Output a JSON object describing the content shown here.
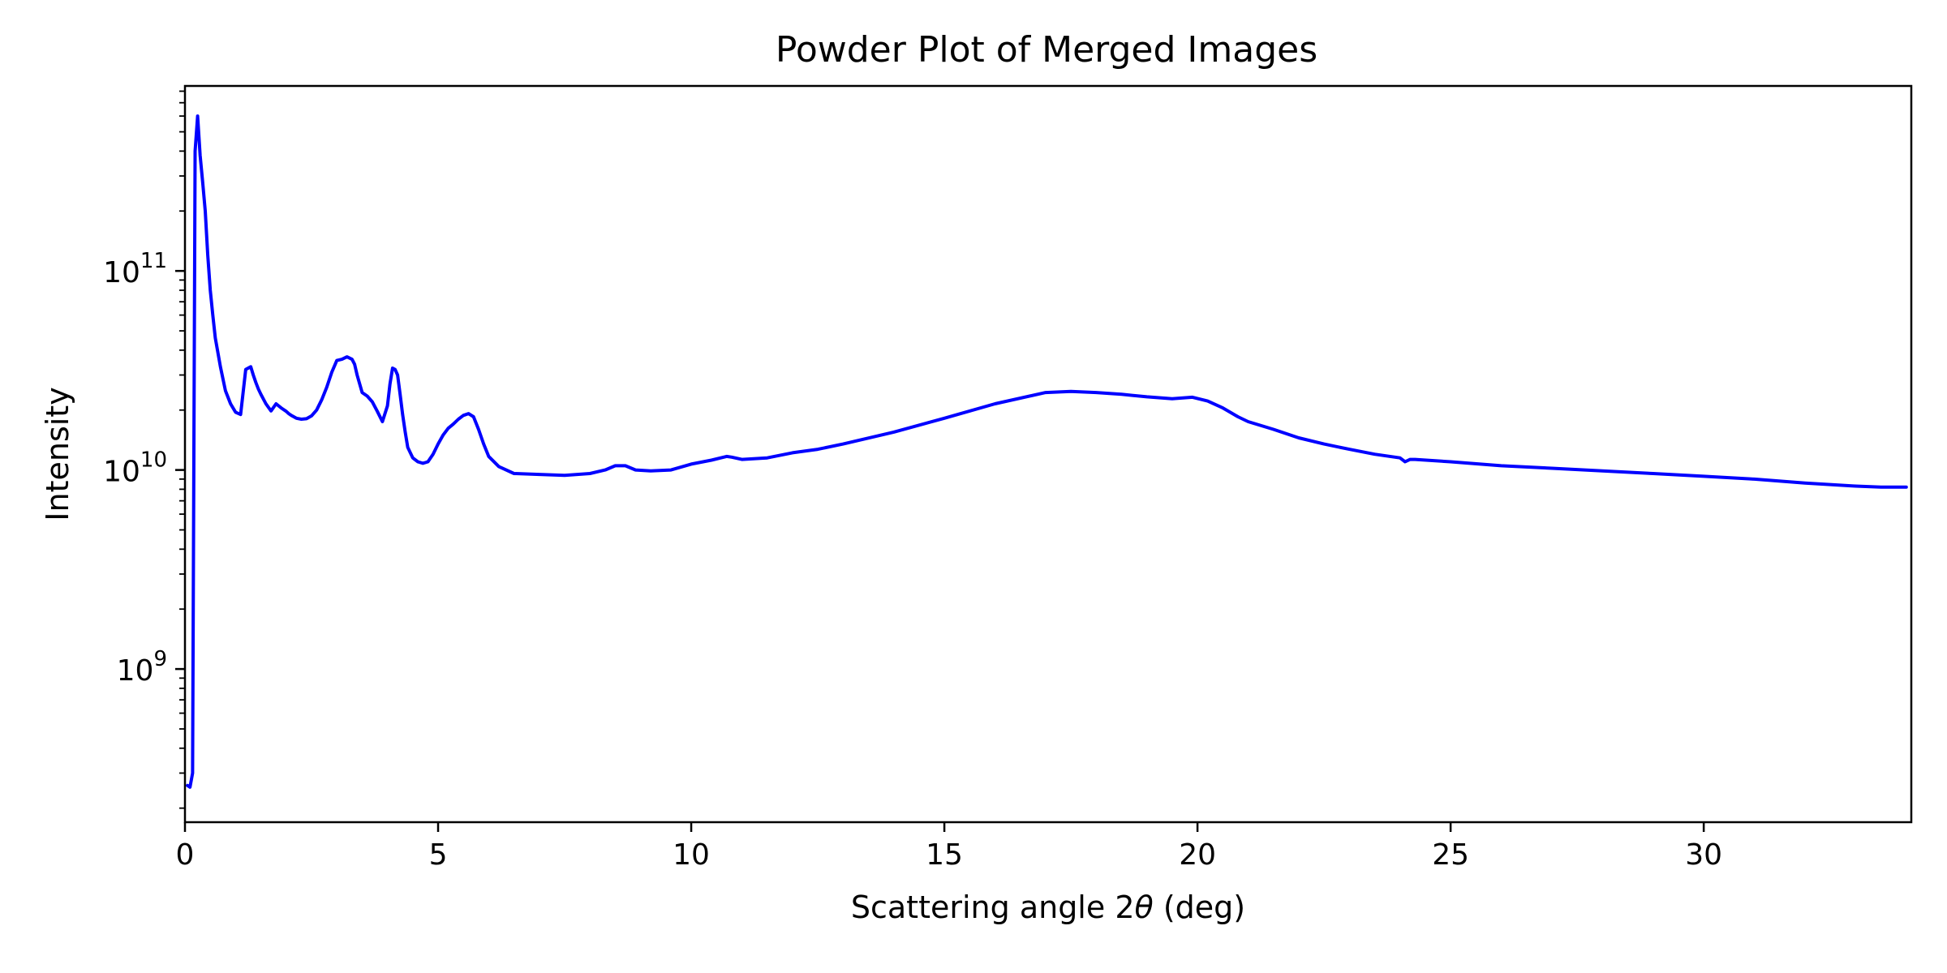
{
  "chart_data": {
    "type": "line",
    "title": "Powder Plot of Merged Images",
    "xlabel_prefix": "Scattering angle 2",
    "xlabel_theta": "θ",
    "xlabel_suffix": " (deg)",
    "ylabel": "Intensity",
    "xlim": [
      0,
      34.1
    ],
    "ylim": [
      170000000.0,
      850000000000.0
    ],
    "yscale": "log",
    "grid": false,
    "legend": "none",
    "line_color": "#0000ff",
    "x_ticks": [
      {
        "value": 0,
        "label": "0"
      },
      {
        "value": 5,
        "label": "5"
      },
      {
        "value": 10,
        "label": "10"
      },
      {
        "value": 15,
        "label": "15"
      },
      {
        "value": 20,
        "label": "20"
      },
      {
        "value": 25,
        "label": "25"
      },
      {
        "value": 30,
        "label": "30"
      }
    ],
    "y_ticks": [
      {
        "value": 1000000000.0,
        "base": "10",
        "exponent": "9"
      },
      {
        "value": 10000000000.0,
        "base": "10",
        "exponent": "10"
      },
      {
        "value": 100000000000.0,
        "base": "10",
        "exponent": "11"
      }
    ],
    "series": [
      {
        "x": [
          0.05,
          0.1,
          0.15,
          0.18,
          0.2,
          0.25,
          0.3,
          0.35,
          0.4,
          0.45,
          0.5,
          0.55,
          0.6,
          0.7,
          0.8,
          0.9,
          1.0,
          1.1,
          1.2,
          1.3,
          1.35,
          1.4,
          1.45,
          1.5,
          1.6,
          1.7,
          1.8,
          1.9,
          2.0,
          2.05,
          2.1,
          2.2,
          2.3,
          2.4,
          2.5,
          2.6,
          2.7,
          2.8,
          2.9,
          3.0,
          3.1,
          3.2,
          3.3,
          3.35,
          3.4,
          3.5,
          3.6,
          3.7,
          3.8,
          3.9,
          4.0,
          4.05,
          4.1,
          4.15,
          4.2,
          4.25,
          4.3,
          4.35,
          4.4,
          4.5,
          4.6,
          4.7,
          4.8,
          4.9,
          5.0,
          5.1,
          5.2,
          5.3,
          5.4,
          5.5,
          5.6,
          5.7,
          5.8,
          5.9,
          6.0,
          6.2,
          6.5,
          7.0,
          7.5,
          8.0,
          8.3,
          8.5,
          8.7,
          8.9,
          9.2,
          9.6,
          10.0,
          10.4,
          10.7,
          10.8,
          11.0,
          11.5,
          12.0,
          12.5,
          13.0,
          14.0,
          15.0,
          16.0,
          17.0,
          17.5,
          18.0,
          18.5,
          19.0,
          19.5,
          19.9,
          20.2,
          20.5,
          20.8,
          21.0,
          21.5,
          22.0,
          22.5,
          23.0,
          23.5,
          24.0,
          24.1,
          24.2,
          24.3,
          25.0,
          26.0,
          27.0,
          28.0,
          29.0,
          30.0,
          31.0,
          32.0,
          33.0,
          33.5,
          34.0
        ],
        "y": [
          260000000.0,
          255000000.0,
          300000000.0,
          20000000000.0,
          400000000000.0,
          600000000000.0,
          380000000000.0,
          280000000000.0,
          200000000000.0,
          120000000000.0,
          80000000000.0,
          60000000000.0,
          46000000000.0,
          33000000000.0,
          25000000000.0,
          21500000000.0,
          19500000000.0,
          19000000000.0,
          32000000000.0,
          33000000000.0,
          30000000000.0,
          27500000000.0,
          25500000000.0,
          24000000000.0,
          21500000000.0,
          19800000000.0,
          21500000000.0,
          20500000000.0,
          19700000000.0,
          19200000000.0,
          18800000000.0,
          18200000000.0,
          18000000000.0,
          18100000000.0,
          18700000000.0,
          20000000000.0,
          22500000000.0,
          26000000000.0,
          31000000000.0,
          35500000000.0,
          36000000000.0,
          37000000000.0,
          36000000000.0,
          34000000000.0,
          30000000000.0,
          24500000000.0,
          23500000000.0,
          22000000000.0,
          19700000000.0,
          17500000000.0,
          21000000000.0,
          27000000000.0,
          32500000000.0,
          32000000000.0,
          30000000000.0,
          24000000000.0,
          19000000000.0,
          15500000000.0,
          13000000000.0,
          11500000000.0,
          11000000000.0,
          10800000000.0,
          11000000000.0,
          12000000000.0,
          13500000000.0,
          15000000000.0,
          16200000000.0,
          17000000000.0,
          18000000000.0,
          18800000000.0,
          19200000000.0,
          18500000000.0,
          16000000000.0,
          13500000000.0,
          11700000000.0,
          10400000000.0,
          9600000000.0,
          9500000000.0,
          9400000000.0,
          9600000000.0,
          10000000000.0,
          10500000000.0,
          10500000000.0,
          10000000000.0,
          9900000000.0,
          10000000000.0,
          10700000000.0,
          11200000000.0,
          11700000000.0,
          11600000000.0,
          11300000000.0,
          11500000000.0,
          12200000000.0,
          12700000000.0,
          13500000000.0,
          15500000000.0,
          18200000000.0,
          21500000000.0,
          24500000000.0,
          24800000000.0,
          24500000000.0,
          24000000000.0,
          23300000000.0,
          22800000000.0,
          23200000000.0,
          22200000000.0,
          20500000000.0,
          18500000000.0,
          17500000000.0,
          16000000000.0,
          14500000000.0,
          13500000000.0,
          12700000000.0,
          12000000000.0,
          11500000000.0,
          11000000000.0,
          11300000000.0,
          11300000000.0,
          11000000000.0,
          10500000000.0,
          10200000000.0,
          9900000000.0,
          9600000000.0,
          9300000000.0,
          9000000000.0,
          8600000000.0,
          8300000000.0,
          8200000000.0,
          8200000000.0
        ]
      }
    ]
  }
}
